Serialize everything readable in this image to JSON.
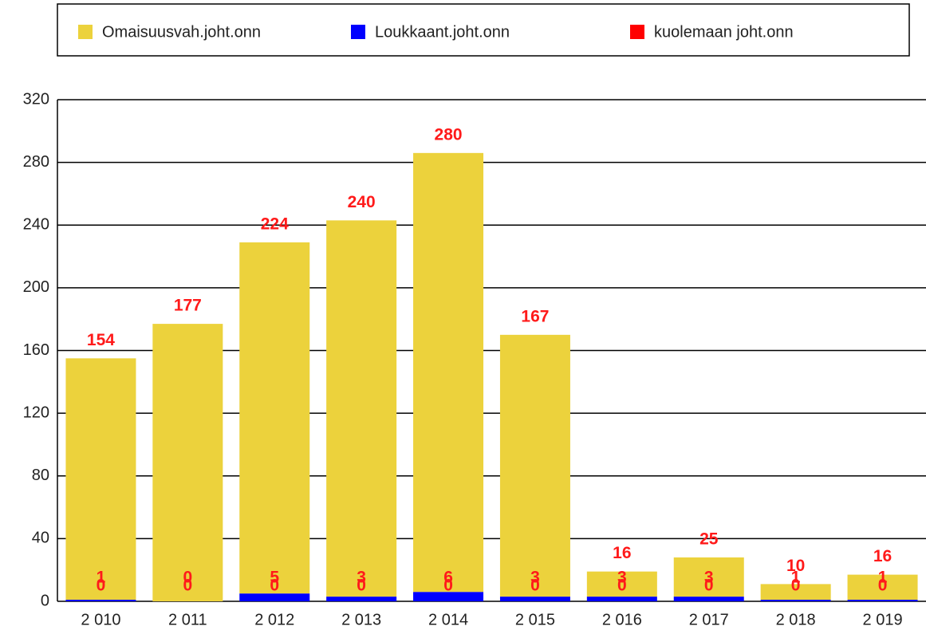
{
  "chart_data": {
    "type": "stacked_bar",
    "categories": [
      "2 010",
      "2 011",
      "2 012",
      "2 013",
      "2 014",
      "2 015",
      "2 016",
      "2 017",
      "2 018",
      "2 019"
    ],
    "series": [
      {
        "name": "kuolemaan joht.onn",
        "color": "#ff0000",
        "values": [
          0,
          0,
          0,
          0,
          0,
          0,
          0,
          0,
          0,
          0
        ]
      },
      {
        "name": "Loukkaant.joht.onn",
        "color": "#0000ff",
        "values": [
          1,
          0,
          5,
          3,
          6,
          3,
          3,
          3,
          1,
          1
        ]
      },
      {
        "name": "Omaisuusvah.joht.onn",
        "color": "#ecd23c",
        "values": [
          154,
          177,
          224,
          240,
          280,
          167,
          16,
          25,
          10,
          16
        ]
      }
    ],
    "ylim": [
      0,
      320
    ],
    "yticks": [
      0,
      40,
      80,
      120,
      160,
      200,
      240,
      280,
      320
    ],
    "grid": true
  }
}
